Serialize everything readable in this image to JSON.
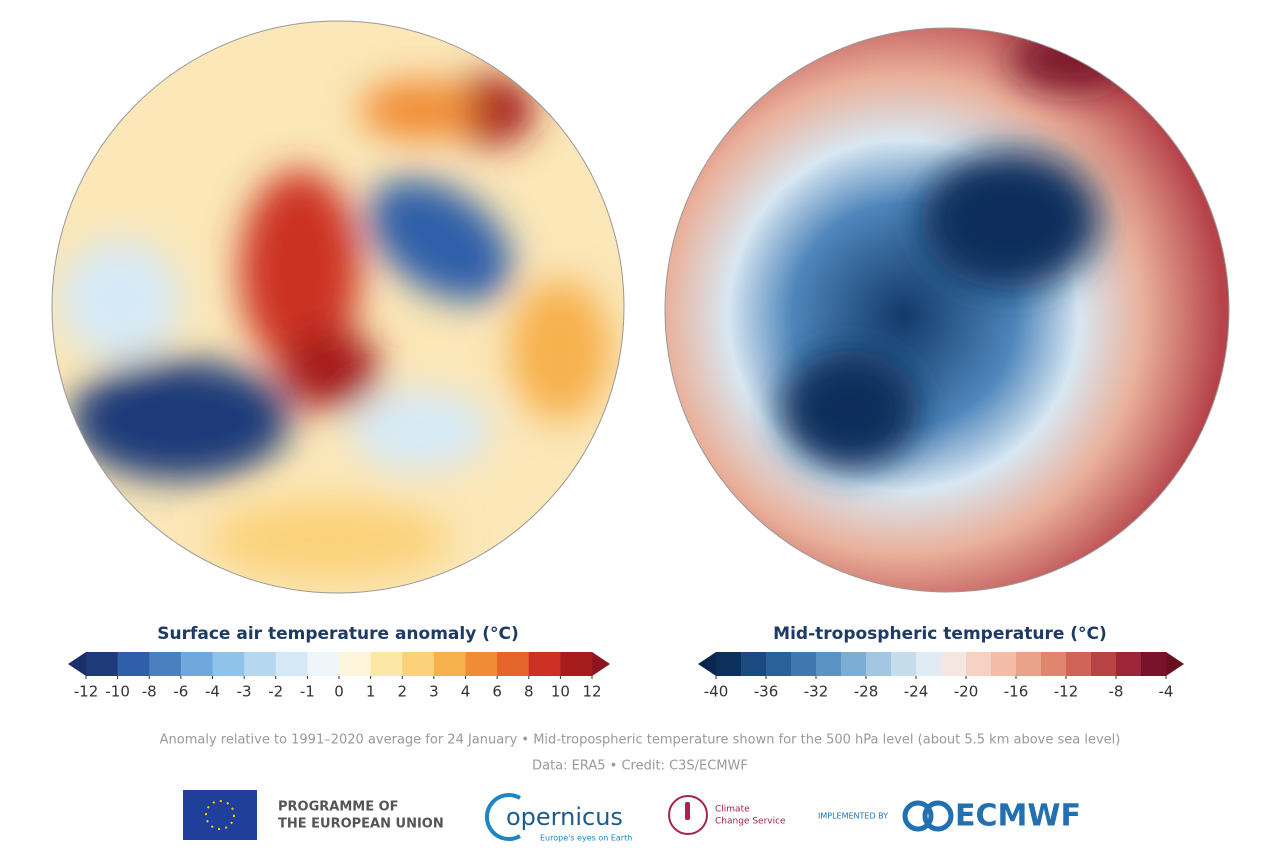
{
  "maps": [
    {
      "title": "Surface air temperature anomaly (°C)",
      "colorbar": {
        "ticks": [
          -12,
          -10,
          -8,
          -6,
          -4,
          -3,
          -2,
          -1,
          0,
          1,
          2,
          3,
          4,
          6,
          8,
          10,
          12
        ],
        "colors": [
          "#1f3a78",
          "#2f5fa8",
          "#4a7fc0",
          "#6fa8dc",
          "#8fc3ea",
          "#b5d8f0",
          "#d6e9f6",
          "#eef6fb",
          "#fdf5dc",
          "#fde7a6",
          "#fbd27a",
          "#f7b04e",
          "#f08c35",
          "#e4642a",
          "#cc3024",
          "#a61c1c"
        ],
        "under_color": "#1a2f66",
        "over_color": "#8c1420"
      }
    },
    {
      "title": "Mid-tropospheric temperature (°C)",
      "colorbar": {
        "levels": [
          -40,
          -38,
          -36,
          -34,
          -32,
          -30,
          -28,
          -26,
          -24,
          -22,
          -20,
          -18,
          -16,
          -14,
          -12,
          -10,
          -8,
          -6,
          -4
        ],
        "ticks": [
          -40,
          -36,
          -32,
          -28,
          -24,
          -20,
          -16,
          -12,
          -8,
          -4
        ],
        "colors": [
          "#0d2f5c",
          "#1b4a80",
          "#2b619a",
          "#3f78b0",
          "#5b93c4",
          "#7eadd3",
          "#a3c7e2",
          "#c5dced",
          "#e0ebf3",
          "#f6e6e2",
          "#f6d2c4",
          "#f2bca6",
          "#eaa289",
          "#e0866f",
          "#cf6457",
          "#b84345",
          "#9c2538",
          "#78122a"
        ],
        "under_color": "#0a2650",
        "over_color": "#6a0f22"
      }
    }
  ],
  "footer": {
    "note": "Anomaly relative to 1991–2020 average for 24 January • Mid-tropospheric temperature shown for the 500 hPa level (about 5.5 km above sea level)",
    "credit": "Data: ERA5 • Credit: C3S/ECMWF"
  },
  "logos": {
    "eu_line1": "PROGRAMME OF",
    "eu_line2": "THE EUROPEAN UNION",
    "copernicus": "opernicus",
    "copernicus_tagline": "Europe's eyes on Earth",
    "c3s_line1": "Climate",
    "c3s_line2": "Change Service",
    "implemented_by": "IMPLEMENTED BY",
    "ecmwf": "ECMWF"
  }
}
